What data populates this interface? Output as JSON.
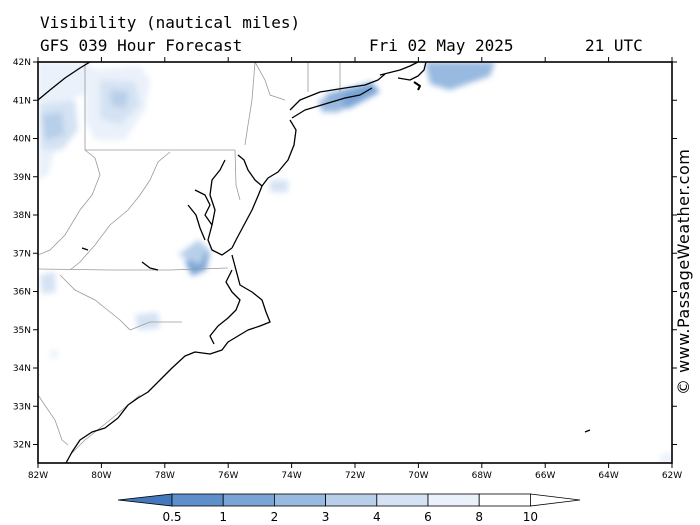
{
  "header": {
    "title": "Visibility (nautical miles)",
    "model": "GFS 039 Hour Forecast",
    "date": "Fri 02 May 2025",
    "time": "21 UTC"
  },
  "credit": "© www.PassageWeather.com",
  "map": {
    "lat_ticks": [
      "42N",
      "41N",
      "40N",
      "39N",
      "38N",
      "37N",
      "36N",
      "35N",
      "34N",
      "33N",
      "32N"
    ],
    "lon_ticks": [
      "82W",
      "80W",
      "78W",
      "76W",
      "74W",
      "72W",
      "70W",
      "68W",
      "66W",
      "64W",
      "62W"
    ],
    "background_color": "#ffffff",
    "coast_color": "#000000",
    "border_color": "#9a9a9a"
  },
  "legend": {
    "labels": [
      "0.5",
      "1",
      "2",
      "3",
      "4",
      "6",
      "8",
      "10"
    ],
    "colors": [
      "#4478bd",
      "#5f8fca",
      "#7aa4d6",
      "#98b9e0",
      "#b7cfe9",
      "#d4e2f3",
      "#eaf1fa",
      "#ffffff"
    ]
  }
}
